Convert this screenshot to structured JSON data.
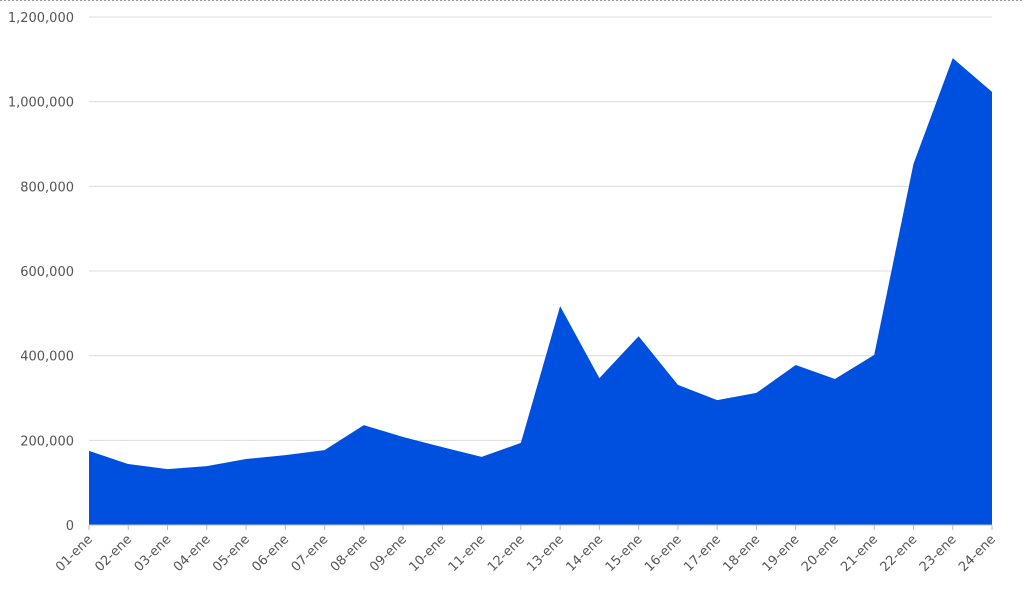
{
  "chart_data": {
    "type": "area",
    "categories": [
      "01-ene",
      "02-ene",
      "03-ene",
      "04-ene",
      "05-ene",
      "06-ene",
      "07-ene",
      "08-ene",
      "09-ene",
      "10-ene",
      "11-ene",
      "12-ene",
      "13-ene",
      "14-ene",
      "15-ene",
      "16-ene",
      "17-ene",
      "18-ene",
      "19-ene",
      "20-ene",
      "21-ene",
      "22-ene",
      "23-ene",
      "24-ene"
    ],
    "values": [
      175000,
      144000,
      132000,
      139000,
      156000,
      165000,
      177000,
      236000,
      208000,
      184000,
      161000,
      194000,
      517000,
      347000,
      446000,
      331000,
      295000,
      312000,
      378000,
      345000,
      402000,
      853000,
      1103000,
      1023000
    ],
    "color": "#0050e0",
    "ylim": [
      0,
      1200000
    ],
    "yticks": [
      0,
      {
        "value": 200000,
        "label": "200,000"
      },
      {
        "value": 400000,
        "label": "400,000"
      },
      {
        "value": 600000,
        "label": "600,000"
      },
      {
        "value": 800000,
        "label": "800,000"
      },
      {
        "value": 1000000,
        "label": "1,000,000"
      },
      {
        "value": 1200000,
        "label": "1,200,000"
      }
    ],
    "grid": true
  }
}
